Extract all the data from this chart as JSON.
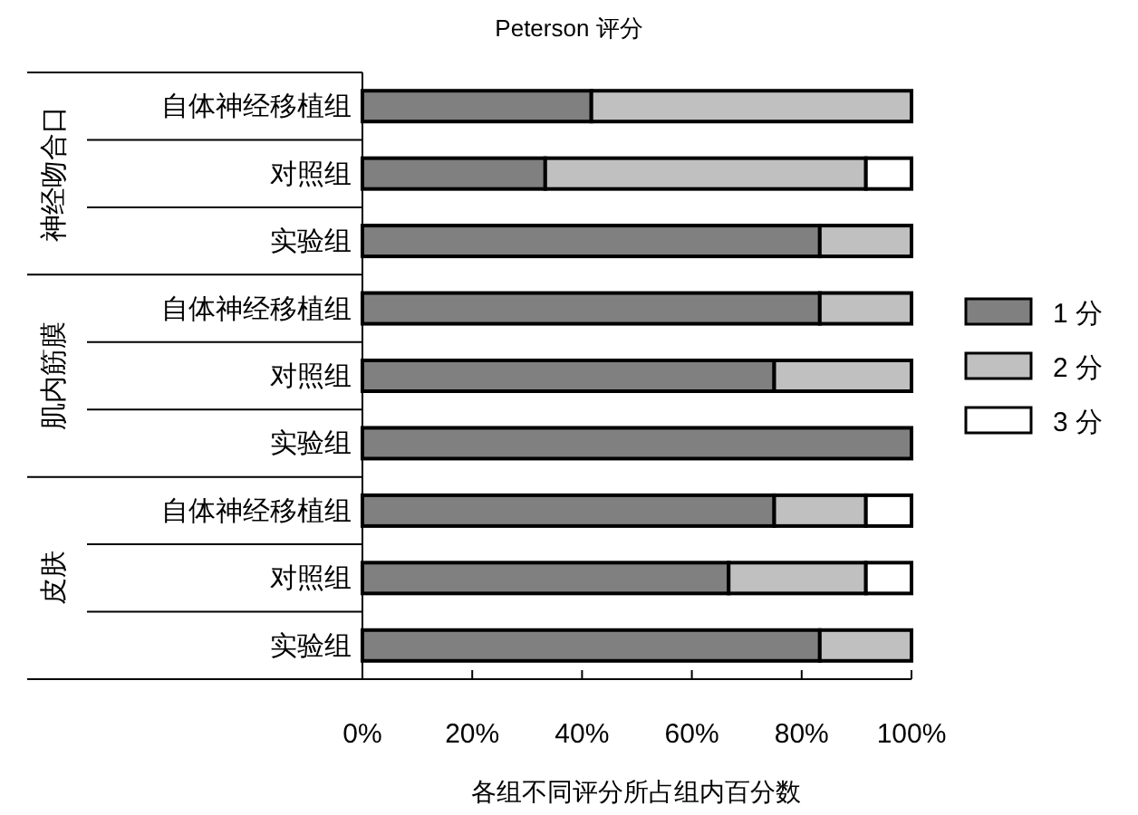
{
  "chart_data": {
    "type": "bar",
    "orientation": "horizontal",
    "stacked": true,
    "title": "Peterson 评分",
    "xlabel": "各组不同评分所占组内百分数",
    "categories": [
      "自体神经移植组",
      "对照组",
      "实验组",
      "自体神经移植组",
      "对照组",
      "实验组",
      "自体神经移植组",
      "对照组",
      "实验组"
    ],
    "annotations": [
      "神经吻合口",
      "肌内筋膜",
      "皮肤"
    ],
    "series": [
      {
        "name": "1 分",
        "color": "#808080",
        "values": [
          41.7,
          33.3,
          83.3,
          83.3,
          75,
          100,
          75,
          66.7,
          83.3
        ]
      },
      {
        "name": "2 分",
        "color": "#c0c0c0",
        "values": [
          58.3,
          58.4,
          16.7,
          16.7,
          25,
          null,
          16.7,
          25,
          16.7
        ]
      },
      {
        "name": "3 分",
        "color": "#ffffff",
        "values": [
          null,
          8.3,
          null,
          null,
          null,
          null,
          8.3,
          8.3,
          null
        ]
      }
    ],
    "xlim": [
      0,
      100
    ],
    "xticks": [
      {
        "value": 0,
        "label": "0%"
      },
      {
        "value": 20,
        "label": "20%"
      },
      {
        "value": 40,
        "label": "40%"
      },
      {
        "value": 60,
        "label": "60%"
      },
      {
        "value": 80,
        "label": "80%"
      },
      {
        "value": 100,
        "label": "100%"
      }
    ],
    "grid": false,
    "legend": "right"
  }
}
